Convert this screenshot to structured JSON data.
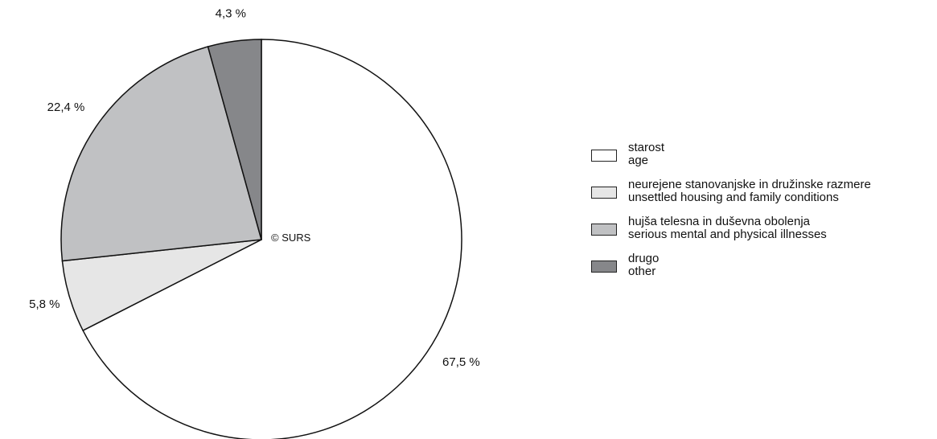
{
  "chart_data": {
    "type": "pie",
    "start_angle_deg": 0,
    "direction": "clockwise",
    "slices": [
      {
        "label_sl": "starost",
        "label_en": "age",
        "value": 67.5,
        "value_label": "67,5 %",
        "color": "#ffffff"
      },
      {
        "label_sl": "neurejene stanovanjske in družinske razmere",
        "label_en": "unsettled housing and family conditions",
        "value": 5.8,
        "value_label": "5,8 %",
        "color": "#e6e6e6"
      },
      {
        "label_sl": "hujša telesna in duševna obolenja",
        "label_en": "serious mental and physical illnesses",
        "value": 22.4,
        "value_label": "22,4 %",
        "color": "#c0c1c3"
      },
      {
        "label_sl": "drugo",
        "label_en": "other",
        "value": 4.3,
        "value_label": "4,3 %",
        "color": "#86878a"
      }
    ],
    "annotation": "© SURS",
    "legend_position": "right"
  }
}
